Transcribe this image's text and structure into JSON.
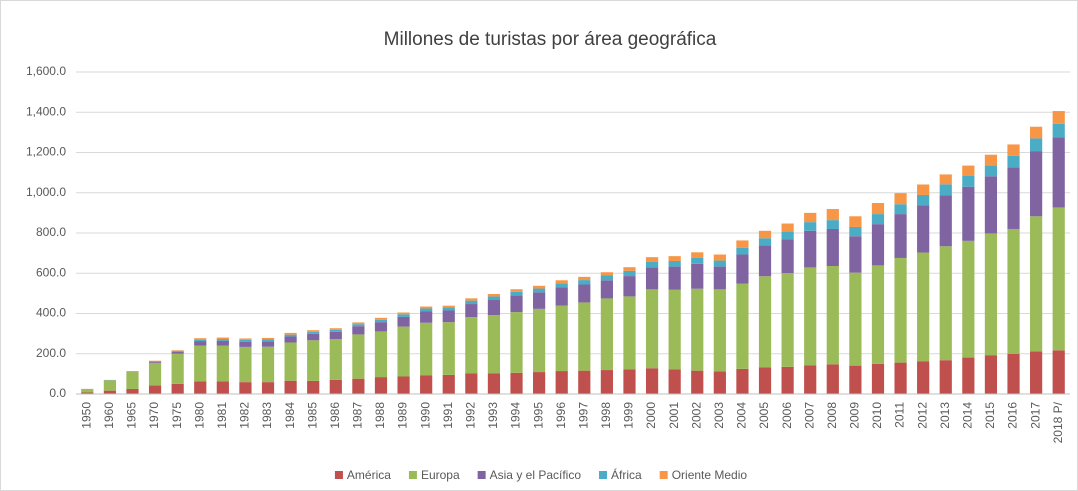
{
  "chart_data": {
    "type": "stacked_bar",
    "title": "Millones de turistas por área geográfica",
    "categories": [
      "1950",
      "1960",
      "1965",
      "1970",
      "1975",
      "1980",
      "1981",
      "1982",
      "1983",
      "1984",
      "1985",
      "1986",
      "1987",
      "1988",
      "1989",
      "1990",
      "1991",
      "1992",
      "1993",
      "1994",
      "1995",
      "1996",
      "1997",
      "1998",
      "1999",
      "2000",
      "2001",
      "2002",
      "2003",
      "2004",
      "2005",
      "2006",
      "2007",
      "2008",
      "2009",
      "2010",
      "2011",
      "2012",
      "2013",
      "2014",
      "2015",
      "2016",
      "2017",
      "2018 P/"
    ],
    "series": [
      {
        "name": "América",
        "color": "#c0504d",
        "values": [
          7.5,
          16.7,
          25,
          42,
          50,
          62,
          62,
          59,
          59,
          66,
          65,
          70,
          76,
          84,
          87,
          92,
          95,
          102,
          102,
          105,
          109,
          114,
          116,
          119,
          122,
          128,
          122,
          116,
          113,
          125,
          133,
          135,
          143,
          147,
          141,
          150,
          156,
          163,
          168,
          181,
          193,
          200,
          211,
          217
        ]
      },
      {
        "name": "Europa",
        "color": "#9bbb59",
        "values": [
          17,
          51,
          84,
          113,
          150,
          178,
          178,
          175,
          176,
          190,
          202,
          203,
          220,
          227,
          248,
          262,
          262,
          280,
          290,
          302,
          314,
          325,
          339,
          356,
          363,
          392,
          396,
          407,
          407,
          424,
          452,
          466,
          486,
          489,
          462,
          489,
          520,
          540,
          566,
          580,
          605,
          620,
          672,
          710
        ]
      },
      {
        "name": "Asia y el Pacífico",
        "color": "#8064a2",
        "values": [
          0.2,
          0.9,
          2,
          6,
          10,
          23,
          25,
          26,
          27,
          30,
          32,
          36,
          41,
          46,
          48,
          56,
          58,
          65,
          75,
          82,
          82,
          90,
          89,
          90,
          101,
          110,
          115,
          124,
          113,
          144,
          154,
          167,
          182,
          184,
          181,
          205,
          218,
          234,
          254,
          269,
          284,
          306,
          324,
          348
        ]
      },
      {
        "name": "África",
        "color": "#4bacc6",
        "values": [
          0.5,
          0.8,
          1.2,
          2.4,
          4.7,
          7.2,
          8,
          8.5,
          8.7,
          9,
          9.7,
          9.5,
          10,
          12,
          13,
          15,
          15.5,
          17,
          18,
          18.5,
          19,
          21,
          22,
          24,
          26,
          26,
          28,
          29,
          30,
          34,
          35,
          39,
          43,
          44,
          46,
          50,
          49,
          52,
          54,
          55,
          53,
          58,
          63,
          67
        ]
      },
      {
        "name": "Oriente Medio",
        "color": "#f79646",
        "values": [
          0.2,
          0.6,
          1.5,
          1.9,
          2.9,
          7.1,
          7.5,
          7.6,
          8,
          8.5,
          8.5,
          8.3,
          8.7,
          9.5,
          9,
          9.6,
          8.3,
          11.3,
          12,
          13,
          13.7,
          15,
          16,
          16,
          18,
          24,
          24,
          28,
          30,
          36,
          37,
          40,
          46,
          55,
          53,
          55,
          55,
          52,
          49,
          50,
          54,
          56,
          58,
          64
        ]
      }
    ],
    "ylim": [
      0,
      1600
    ],
    "yticks": [
      {
        "value": 0,
        "label": "0.0"
      },
      {
        "value": 200,
        "label": "200.0"
      },
      {
        "value": 400,
        "label": "400.0"
      },
      {
        "value": 600,
        "label": "600.0"
      },
      {
        "value": 800,
        "label": "800.0"
      },
      {
        "value": 1000,
        "label": "1,000.0"
      },
      {
        "value": 1200,
        "label": "1,200.0"
      },
      {
        "value": 1400,
        "label": "1,400.0"
      },
      {
        "value": 1600,
        "label": "1,600.0"
      }
    ],
    "grid": true,
    "legend": "bottom"
  }
}
